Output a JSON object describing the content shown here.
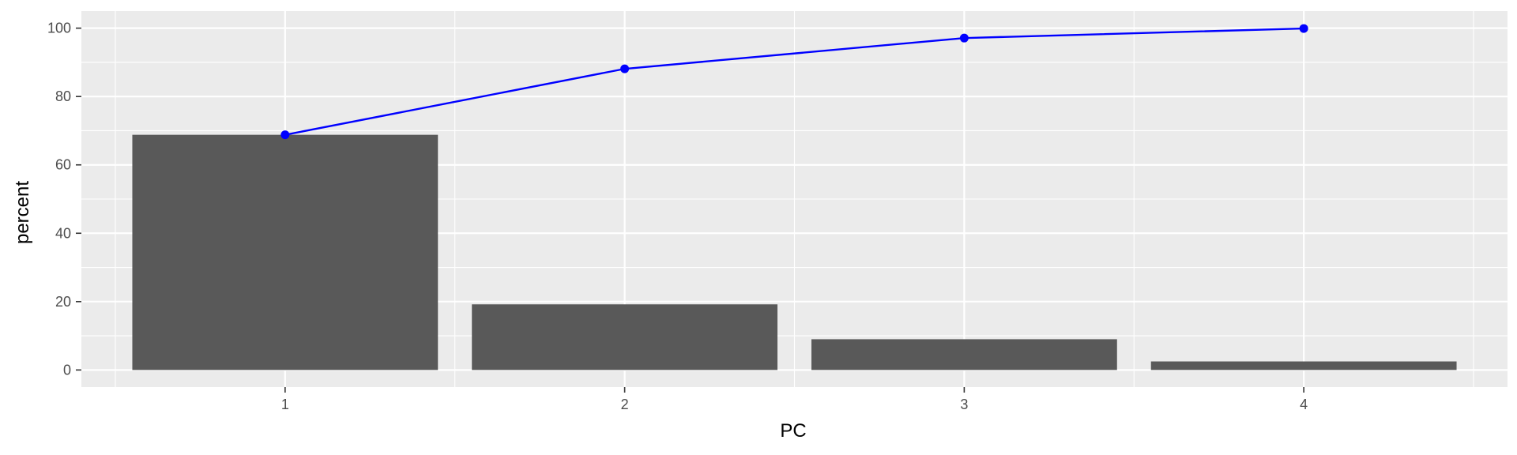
{
  "chart_data": {
    "type": "bar",
    "title": "",
    "xlabel": "PC",
    "ylabel": "percent",
    "categories": [
      "1",
      "2",
      "3",
      "4"
    ],
    "ylim": [
      -5,
      105
    ],
    "yticks": [
      0,
      20,
      40,
      60,
      80,
      100
    ],
    "grid": true,
    "legend": "none",
    "series": [
      {
        "type": "bar",
        "values": [
          68.8,
          19.2,
          9.0,
          2.5
        ]
      },
      {
        "type": "line",
        "values": [
          68.8,
          88.1,
          97.1,
          99.9
        ]
      }
    ]
  },
  "colors": {
    "panel_bg": "#ebebeb",
    "grid_major": "#ffffff",
    "bar_fill": "#595959",
    "line": "#0000ff",
    "tick_text": "#4d4d4d",
    "axis_title": "#000000"
  }
}
